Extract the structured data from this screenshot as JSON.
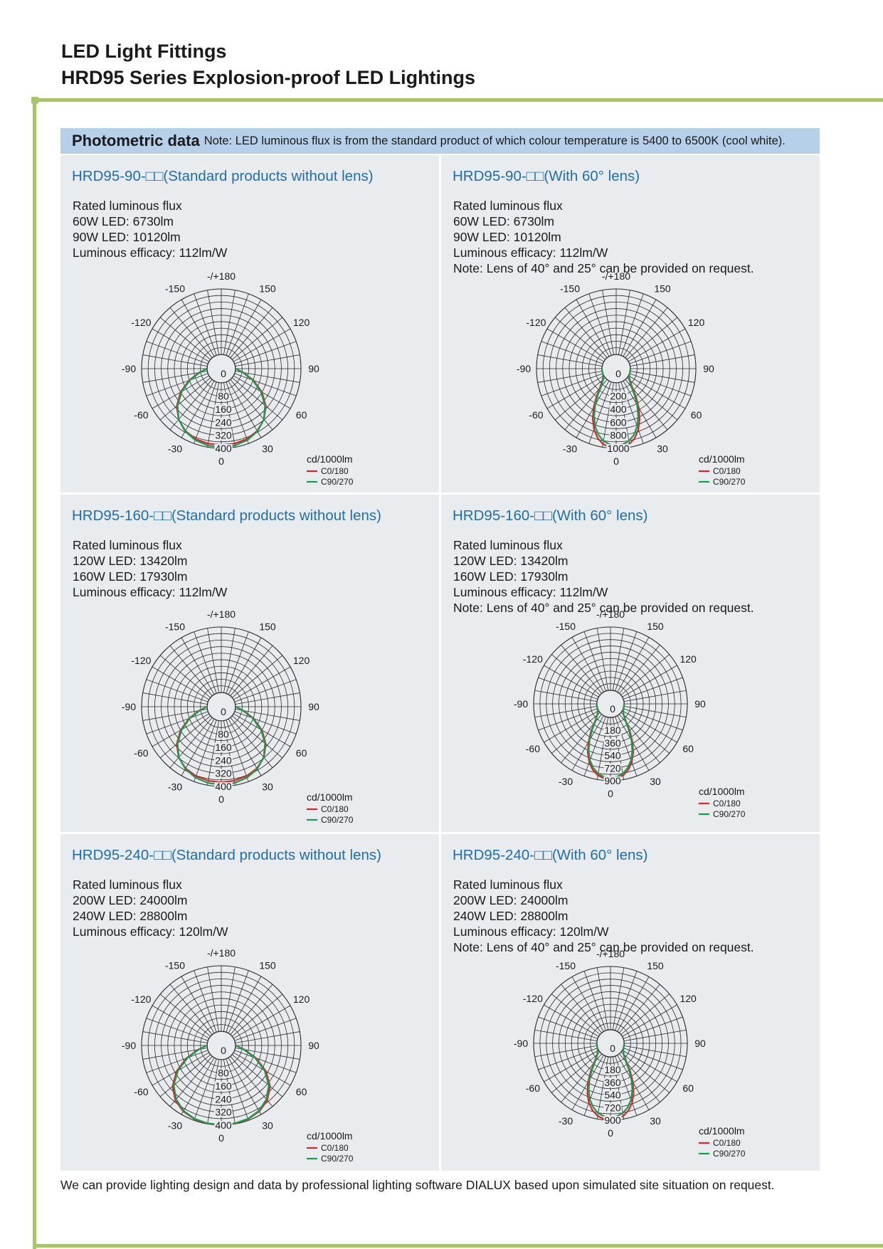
{
  "header": {
    "title_line1": "LED Light Fittings",
    "title_line2": "HRD95 Series Explosion-proof LED Lightings"
  },
  "band": {
    "title": "Photometric data",
    "note": "Note: LED luminous flux is from the standard product of which colour temperature is 5400 to 6500K (cool white)."
  },
  "colors": {
    "accent_green": "#a8c46c",
    "band_blue": "#b5d0e8",
    "model_blue": "#1f6eab",
    "c0": "#d9262b",
    "c90": "#179c4b",
    "panel": "#e9ecef"
  },
  "panels": [
    {
      "model": "HRD95-90-□□(Standard products without lens)",
      "specs": [
        "Rated luminous flux",
        "60W LED: 6730lm",
        "90W LED: 10120lm",
        "Luminous efficacy: 112lm/W"
      ]
    },
    {
      "model": "HRD95-90-□□(With 60°  lens)",
      "specs": [
        "Rated luminous flux",
        "60W LED: 6730lm",
        "90W LED: 10120lm",
        "Luminous efficacy: 112lm/W",
        "Note: Lens of 40° and 25° can be provided on request."
      ]
    },
    {
      "model": "HRD95-160-□□(Standard products without lens)",
      "specs": [
        "Rated luminous flux",
        "120W LED: 13420lm",
        "160W LED: 17930lm",
        "Luminous efficacy: 112lm/W"
      ]
    },
    {
      "model": "HRD95-160-□□(With 60°  lens)",
      "specs": [
        "Rated luminous flux",
        "120W LED: 13420lm",
        "160W LED: 17930lm",
        "Luminous efficacy: 112lm/W",
        "Note: Lens of 40° and 25° can be provided on request."
      ]
    },
    {
      "model": "HRD95-240-□□(Standard products without lens)",
      "specs": [
        "Rated luminous flux",
        "200W LED: 24000lm",
        "240W LED: 28800lm",
        "Luminous efficacy: 120lm/W"
      ]
    },
    {
      "model": "HRD95-240-□□(With 60°  lens)",
      "specs": [
        "Rated luminous flux",
        "200W LED: 24000lm",
        "240W LED: 28800lm",
        "Luminous efficacy: 120lm/W",
        "Note: Lens of 40° and 25° can be provided on request."
      ]
    }
  ],
  "chart_data": [
    {
      "type": "polar",
      "unit_label": "cd/1000lm",
      "angle_labels": [
        "-/+180",
        "-150",
        "150",
        "-120",
        "120",
        "-90",
        "90",
        "-60",
        "60",
        "-30",
        "30",
        "0"
      ],
      "radial_ticks": [
        "0",
        "80",
        "160",
        "240",
        "320",
        "400"
      ],
      "r_max": 400,
      "series": [
        {
          "name": "C0/180",
          "color": "#d9262b",
          "angles": [
            0,
            10,
            20,
            30,
            40,
            50,
            60,
            70,
            80,
            90
          ],
          "values": [
            380,
            378,
            370,
            352,
            318,
            268,
            200,
            122,
            50,
            0
          ]
        },
        {
          "name": "C90/270",
          "color": "#179c4b",
          "angles": [
            0,
            10,
            20,
            30,
            40,
            50,
            60,
            70,
            80,
            90
          ],
          "values": [
            395,
            390,
            378,
            355,
            318,
            262,
            192,
            115,
            45,
            0
          ]
        }
      ]
    },
    {
      "type": "polar",
      "unit_label": "cd/1000lm",
      "angle_labels": [
        "-/+180",
        "-150",
        "150",
        "-120",
        "120",
        "-90",
        "90",
        "-60",
        "60",
        "-30",
        "30",
        "0"
      ],
      "radial_ticks": [
        "0",
        "200",
        "400",
        "600",
        "800",
        "1000"
      ],
      "r_max": 1000,
      "series": [
        {
          "name": "C0/180",
          "color": "#d9262b",
          "angles": [
            0,
            5,
            10,
            15,
            20,
            25,
            30,
            35,
            40,
            50,
            60,
            90
          ],
          "values": [
            1000,
            985,
            950,
            880,
            770,
            630,
            470,
            310,
            170,
            50,
            12,
            0
          ]
        },
        {
          "name": "C90/270",
          "color": "#179c4b",
          "angles": [
            0,
            5,
            10,
            15,
            20,
            25,
            30,
            35,
            40,
            50,
            60,
            90
          ],
          "values": [
            960,
            945,
            905,
            830,
            720,
            580,
            420,
            270,
            140,
            40,
            10,
            0
          ]
        }
      ]
    },
    {
      "type": "polar",
      "unit_label": "cd/1000lm",
      "angle_labels": [
        "-/+180",
        "-150",
        "150",
        "-120",
        "120",
        "-90",
        "90",
        "-60",
        "60",
        "-30",
        "30",
        "0"
      ],
      "radial_ticks": [
        "0",
        "80",
        "160",
        "240",
        "320",
        "400"
      ],
      "r_max": 400,
      "series": [
        {
          "name": "C0/180",
          "color": "#d9262b",
          "angles": [
            0,
            10,
            20,
            30,
            40,
            50,
            60,
            70,
            80,
            90
          ],
          "values": [
            375,
            372,
            364,
            348,
            318,
            268,
            200,
            122,
            50,
            0
          ]
        },
        {
          "name": "C90/270",
          "color": "#179c4b",
          "angles": [
            0,
            10,
            20,
            30,
            40,
            50,
            60,
            70,
            80,
            90
          ],
          "values": [
            390,
            386,
            374,
            352,
            316,
            262,
            192,
            115,
            45,
            0
          ]
        }
      ]
    },
    {
      "type": "polar",
      "unit_label": "cd/1000lm",
      "angle_labels": [
        "-/+180",
        "-150",
        "150",
        "-120",
        "120",
        "-90",
        "90",
        "-60",
        "60",
        "-30",
        "30",
        "0"
      ],
      "radial_ticks": [
        "0",
        "180",
        "360",
        "540",
        "720",
        "900"
      ],
      "r_max": 900,
      "series": [
        {
          "name": "C0/180",
          "color": "#d9262b",
          "angles": [
            0,
            5,
            10,
            15,
            20,
            25,
            30,
            35,
            40,
            50,
            60,
            90
          ],
          "values": [
            880,
            870,
            840,
            780,
            690,
            570,
            430,
            290,
            160,
            50,
            12,
            0
          ]
        },
        {
          "name": "C90/270",
          "color": "#179c4b",
          "angles": [
            0,
            5,
            10,
            15,
            20,
            25,
            30,
            35,
            40,
            50,
            60,
            90
          ],
          "values": [
            860,
            848,
            815,
            750,
            660,
            540,
            400,
            265,
            145,
            45,
            10,
            0
          ]
        }
      ]
    },
    {
      "type": "polar",
      "unit_label": "cd/1000lm",
      "angle_labels": [
        "-/+180",
        "-150",
        "150",
        "-120",
        "120",
        "-90",
        "90",
        "-60",
        "60",
        "-30",
        "30",
        "0"
      ],
      "radial_ticks": [
        "0",
        "80",
        "160",
        "240",
        "320",
        "400"
      ],
      "r_max": 400,
      "series": [
        {
          "name": "C0/180",
          "color": "#d9262b",
          "angles": [
            0,
            10,
            20,
            30,
            40,
            50,
            60,
            70,
            80,
            90
          ],
          "values": [
            400,
            398,
            392,
            378,
            350,
            302,
            228,
            140,
            55,
            0
          ]
        },
        {
          "name": "C90/270",
          "color": "#179c4b",
          "angles": [
            0,
            10,
            20,
            30,
            40,
            50,
            60,
            70,
            80,
            90
          ],
          "values": [
            398,
            396,
            390,
            374,
            342,
            292,
            218,
            132,
            50,
            0
          ]
        }
      ]
    },
    {
      "type": "polar",
      "unit_label": "cd/1000lm",
      "angle_labels": [
        "-/+180",
        "-150",
        "150",
        "-120",
        "120",
        "-90",
        "90",
        "-60",
        "60",
        "-30",
        "30",
        "0"
      ],
      "radial_ticks": [
        "0",
        "180",
        "360",
        "540",
        "720",
        "900"
      ],
      "r_max": 900,
      "series": [
        {
          "name": "C0/180",
          "color": "#d9262b",
          "angles": [
            0,
            5,
            10,
            15,
            20,
            25,
            30,
            35,
            40,
            50,
            60,
            90
          ],
          "values": [
            900,
            888,
            855,
            795,
            705,
            585,
            440,
            295,
            165,
            52,
            12,
            0
          ]
        },
        {
          "name": "C90/270",
          "color": "#179c4b",
          "angles": [
            0,
            5,
            10,
            15,
            20,
            25,
            30,
            35,
            40,
            50,
            60,
            90
          ],
          "values": [
            860,
            848,
            815,
            750,
            660,
            540,
            400,
            265,
            145,
            45,
            10,
            0
          ]
        }
      ]
    }
  ],
  "footer": {
    "note": "We can provide lighting design and data by professional lighting software DIALUX based upon simulated site situation on request."
  }
}
